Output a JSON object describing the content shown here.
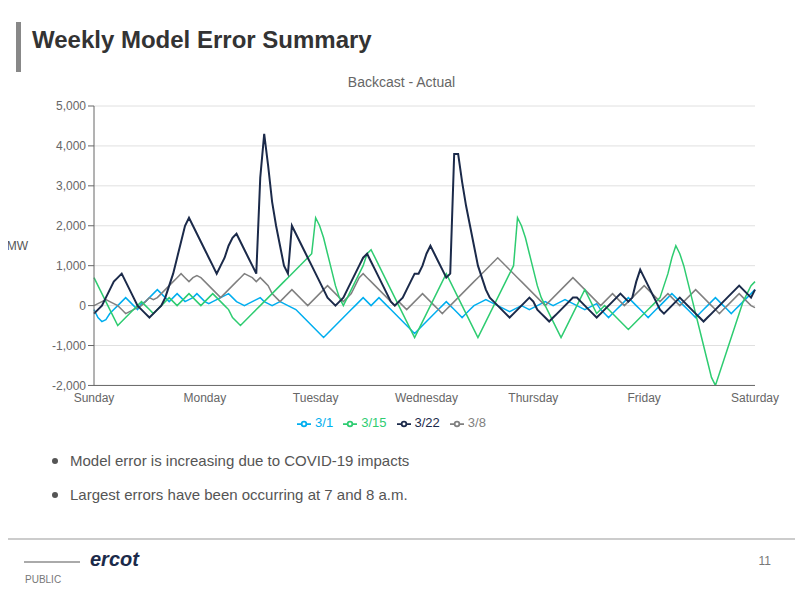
{
  "chart_data": {
    "type": "line",
    "title": "Weekly Model Error Summary",
    "subtitle": "Backcast - Actual",
    "ylabel": "MW",
    "annotations": [
      "Model error is increasing due to COVID-19 impacts",
      "Largest errors have been occurring at 7 and 8 a.m.",
      "ercot",
      "PUBLIC",
      "11"
    ],
    "categories": [
      "Sunday",
      null,
      null,
      null,
      null,
      null,
      null,
      null,
      null,
      null,
      null,
      null,
      null,
      null,
      null,
      null,
      null,
      null,
      null,
      null,
      null,
      null,
      null,
      null,
      null,
      null,
      null,
      null,
      "Monday",
      null,
      null,
      null,
      null,
      null,
      null,
      null,
      null,
      null,
      null,
      null,
      null,
      null,
      null,
      null,
      null,
      null,
      null,
      null,
      null,
      null,
      null,
      null,
      null,
      null,
      null,
      null,
      "Tuesday",
      null,
      null,
      null,
      null,
      null,
      null,
      null,
      null,
      null,
      null,
      null,
      null,
      null,
      null,
      null,
      null,
      null,
      null,
      null,
      null,
      null,
      null,
      null,
      null,
      null,
      null,
      null,
      "Wednesday",
      null,
      null,
      null,
      null,
      null,
      null,
      null,
      null,
      null,
      null,
      null,
      null,
      null,
      null,
      null,
      null,
      null,
      null,
      null,
      null,
      null,
      null,
      null,
      null,
      null,
      null,
      "Thursday",
      null,
      null,
      null,
      null,
      null,
      null,
      null,
      null,
      null,
      null,
      null,
      null,
      null,
      null,
      null,
      null,
      null,
      null,
      null,
      null,
      null,
      null,
      null,
      null,
      null,
      null,
      null,
      "Friday",
      null,
      null,
      null,
      null,
      null,
      null,
      null,
      null,
      null,
      null,
      null,
      null,
      null,
      null,
      null,
      null,
      null,
      null,
      null,
      null,
      null,
      null,
      null,
      null,
      null,
      null,
      null,
      "Saturday"
    ],
    "series": [
      {
        "name": "3/1",
        "color": "#00AEEF",
        "values": [
          -100,
          -300,
          -400,
          -350,
          -200,
          -100,
          0,
          100,
          200,
          100,
          0,
          -100,
          50,
          100,
          200,
          300,
          400,
          300,
          200,
          100,
          200,
          300,
          200,
          100,
          150,
          200,
          300,
          200,
          100,
          50,
          100,
          150,
          200,
          250,
          300,
          200,
          100,
          50,
          0,
          50,
          100,
          150,
          200,
          100,
          50,
          0,
          50,
          100,
          50,
          0,
          -50,
          -100,
          -200,
          -300,
          -400,
          -500,
          -600,
          -700,
          -800,
          -700,
          -600,
          -500,
          -400,
          -300,
          -200,
          -100,
          0,
          100,
          200,
          100,
          0,
          100,
          200,
          100,
          0,
          -100,
          -200,
          -300,
          -400,
          -500,
          -600,
          -700,
          -600,
          -500,
          -400,
          -300,
          -200,
          -100,
          0,
          100,
          0,
          -100,
          -200,
          -300,
          -200,
          -100,
          0,
          50,
          100,
          150,
          100,
          50,
          0,
          -50,
          -100,
          -150,
          -100,
          -50,
          0,
          -50,
          -100,
          -50,
          0,
          50,
          100,
          50,
          0,
          50,
          100,
          150,
          100,
          50,
          0,
          -50,
          -100,
          -50,
          0,
          50,
          -100,
          -200,
          -300,
          -200,
          -100,
          0,
          100,
          200,
          100,
          0,
          -100,
          -200,
          -300,
          -200,
          -100,
          0,
          100,
          200,
          300,
          200,
          100,
          0,
          -100,
          -200,
          -300,
          -200,
          -100,
          0,
          100,
          200,
          100,
          0,
          -100,
          -200,
          -100,
          0,
          100,
          200,
          300,
          400
        ]
      },
      {
        "name": "3/8",
        "color": "#808080",
        "values": [
          0,
          50,
          100,
          150,
          100,
          50,
          0,
          -100,
          -200,
          -150,
          -100,
          -50,
          0,
          100,
          200,
          150,
          200,
          300,
          400,
          500,
          600,
          700,
          800,
          700,
          600,
          700,
          750,
          700,
          600,
          500,
          400,
          300,
          200,
          300,
          400,
          500,
          600,
          700,
          800,
          750,
          700,
          600,
          700,
          600,
          500,
          300,
          200,
          100,
          200,
          300,
          400,
          300,
          200,
          100,
          0,
          100,
          200,
          300,
          400,
          500,
          400,
          300,
          200,
          100,
          200,
          300,
          500,
          700,
          800,
          700,
          600,
          500,
          400,
          300,
          200,
          100,
          0,
          100,
          0,
          -100,
          0,
          100,
          200,
          300,
          200,
          100,
          0,
          -100,
          -200,
          -100,
          0,
          100,
          200,
          300,
          400,
          500,
          600,
          700,
          800,
          900,
          1000,
          1100,
          1200,
          1100,
          1000,
          900,
          800,
          700,
          600,
          500,
          400,
          300,
          200,
          100,
          0,
          100,
          200,
          300,
          400,
          500,
          600,
          700,
          600,
          500,
          400,
          300,
          200,
          100,
          0,
          100,
          200,
          300,
          200,
          100,
          0,
          100,
          200,
          300,
          400,
          500,
          400,
          300,
          200,
          100,
          200,
          300,
          200,
          100,
          0,
          100,
          200,
          300,
          400,
          300,
          200,
          100,
          0,
          -100,
          -200,
          -100,
          0,
          100,
          200,
          300,
          200,
          100,
          0,
          -50
        ]
      },
      {
        "name": "3/15",
        "color": "#2ECC71",
        "values": [
          700,
          500,
          300,
          100,
          -100,
          -300,
          -500,
          -400,
          -300,
          -200,
          -100,
          0,
          100,
          0,
          -100,
          -200,
          -100,
          0,
          100,
          200,
          100,
          0,
          100,
          200,
          300,
          200,
          100,
          0,
          100,
          200,
          300,
          200,
          100,
          0,
          -100,
          -300,
          -400,
          -500,
          -400,
          -300,
          -200,
          -100,
          0,
          100,
          200,
          300,
          400,
          500,
          600,
          700,
          800,
          900,
          1000,
          1100,
          1200,
          1300,
          2200,
          2000,
          1700,
          1300,
          900,
          500,
          200,
          0,
          200,
          400,
          600,
          800,
          1000,
          1300,
          1400,
          1200,
          1000,
          800,
          600,
          400,
          200,
          0,
          -200,
          -400,
          -600,
          -800,
          -600,
          -400,
          -200,
          0,
          200,
          400,
          600,
          800,
          600,
          400,
          200,
          0,
          -200,
          -400,
          -600,
          -800,
          -600,
          -400,
          -200,
          0,
          200,
          400,
          600,
          800,
          1000,
          2200,
          2000,
          1700,
          1300,
          900,
          500,
          200,
          0,
          -200,
          -400,
          -600,
          -800,
          -600,
          -400,
          -200,
          0,
          200,
          400,
          200,
          0,
          -200,
          -100,
          0,
          -100,
          -200,
          -300,
          -400,
          -500,
          -600,
          -500,
          -400,
          -300,
          -200,
          -100,
          0,
          100,
          200,
          500,
          800,
          1200,
          1500,
          1300,
          1000,
          600,
          200,
          -200,
          -600,
          -1000,
          -1400,
          -1800,
          -2000,
          -1700,
          -1400,
          -1100,
          -800,
          -500,
          -200,
          100,
          300,
          500,
          600
        ]
      },
      {
        "name": "3/22",
        "color": "#1B2A4A",
        "values": [
          -200,
          -100,
          0,
          200,
          400,
          600,
          700,
          800,
          600,
          400,
          200,
          0,
          -100,
          -200,
          -300,
          -200,
          -100,
          0,
          200,
          500,
          800,
          1200,
          1600,
          2000,
          2200,
          2000,
          1800,
          1600,
          1400,
          1200,
          1000,
          800,
          1000,
          1200,
          1500,
          1700,
          1800,
          1600,
          1400,
          1200,
          1000,
          800,
          3200,
          4300,
          3500,
          2600,
          2000,
          1500,
          1000,
          800,
          2000,
          1800,
          1600,
          1400,
          1200,
          1000,
          800,
          600,
          400,
          200,
          100,
          0,
          100,
          200,
          400,
          600,
          800,
          1000,
          1200,
          1300,
          1100,
          900,
          700,
          500,
          300,
          100,
          0,
          100,
          200,
          400,
          600,
          800,
          800,
          1000,
          1300,
          1500,
          1300,
          1100,
          900,
          700,
          800,
          3800,
          3800,
          3100,
          2500,
          2000,
          1500,
          1000,
          700,
          400,
          200,
          100,
          0,
          -100,
          -200,
          -300,
          -200,
          -100,
          0,
          100,
          200,
          100,
          -100,
          -200,
          -300,
          -400,
          -300,
          -200,
          -100,
          0,
          100,
          200,
          200,
          100,
          0,
          -100,
          -200,
          -300,
          -200,
          -100,
          0,
          100,
          200,
          300,
          200,
          100,
          200,
          600,
          900,
          700,
          500,
          300,
          100,
          -100,
          -200,
          -100,
          0,
          100,
          200,
          100,
          0,
          -100,
          -200,
          -300,
          -400,
          -300,
          -200,
          -100,
          0,
          100,
          200,
          300,
          400,
          500,
          400,
          300,
          200,
          400
        ]
      }
    ],
    "ylim": [
      -2000,
      5000
    ],
    "yticks": [
      {
        "value": -2000,
        "label": "-2,000"
      },
      {
        "value": -1000,
        "label": "-1,000"
      },
      0,
      {
        "value": 1000,
        "label": "1,000"
      },
      {
        "value": 2000,
        "label": "2,000"
      },
      {
        "value": 3000,
        "label": "3,000"
      },
      {
        "value": 4000,
        "label": "4,000"
      },
      {
        "value": 5000,
        "label": "5,000"
      }
    ],
    "grid": true,
    "legend": "bottom"
  }
}
